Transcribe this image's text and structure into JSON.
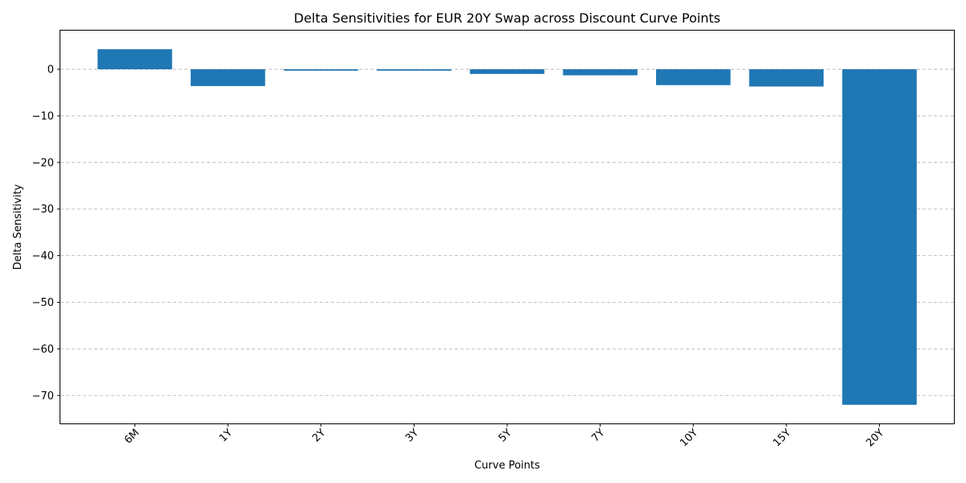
{
  "chart_data": {
    "type": "bar",
    "title": "Delta Sensitivities for EUR 20Y Swap across Discount Curve Points",
    "xlabel": "Curve Points",
    "ylabel": "Delta Sensitivity",
    "categories": [
      "6M",
      "1Y",
      "2Y",
      "3Y",
      "5Y",
      "7Y",
      "10Y",
      "15Y",
      "20Y"
    ],
    "values": [
      4.3,
      -3.6,
      -0.3,
      -0.3,
      -1.0,
      -1.3,
      -3.4,
      -3.7,
      -72.0
    ],
    "ylim": [
      -76,
      8.3
    ],
    "yticks": [
      0,
      -10,
      -20,
      -30,
      -40,
      -50,
      -60,
      -70
    ],
    "ytick_labels": [
      "0",
      "−10",
      "−20",
      "−30",
      "−40",
      "−50",
      "−60",
      "−70"
    ],
    "grid": "y",
    "bar_color": "#1f77b4",
    "xtick_rotation": 45
  }
}
